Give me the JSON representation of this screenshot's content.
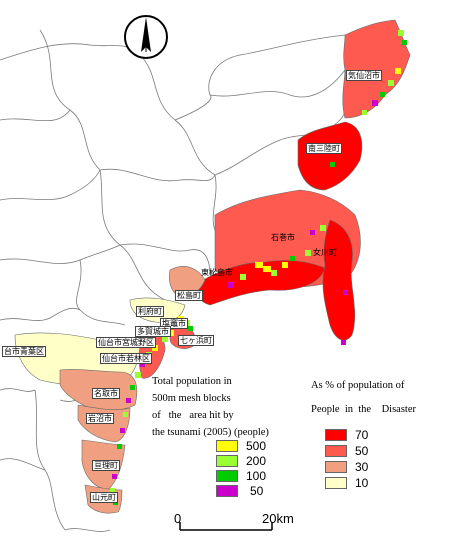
{
  "colors": {
    "pct_70": "#ff0000",
    "pct_50": "#ff5a50",
    "pct_30": "#f0a080",
    "pct_10": "#ffffc8",
    "pop_500": "#ffff00",
    "pop_200": "#99ff33",
    "pop_100": "#00cc00",
    "pop_50": "#cc00cc",
    "boundary": "#7a7a7a"
  },
  "compass": {
    "icon": "north-arrow-icon"
  },
  "places": [
    {
      "id": "kesennuma",
      "label": "気仙沼市",
      "bordered": true
    },
    {
      "id": "minamisanriku",
      "label": "南三陸町",
      "bordered": true
    },
    {
      "id": "ishinomaki",
      "label": "石巻市",
      "bordered": false
    },
    {
      "id": "onagawa",
      "label": "女川町",
      "bordered": false
    },
    {
      "id": "higashimatsushima",
      "label": "東松島市",
      "bordered": false
    },
    {
      "id": "matsushima",
      "label": "松島町",
      "bordered": true
    },
    {
      "id": "rifu",
      "label": "利府町",
      "bordered": true
    },
    {
      "id": "shiogama",
      "label": "塩竈市",
      "bordered": true
    },
    {
      "id": "tagajo",
      "label": "多賀城市",
      "bordered": true
    },
    {
      "id": "shichigahama",
      "label": "七ヶ浜町",
      "bordered": true
    },
    {
      "id": "miyagino",
      "label": "仙台市宮城野区",
      "bordered": true
    },
    {
      "id": "sendai_aoba",
      "label": "台市青葉区",
      "bordered": true
    },
    {
      "id": "wakabayashi",
      "label": "仙台市若林区",
      "bordered": true
    },
    {
      "id": "natori",
      "label": "名取市",
      "bordered": true
    },
    {
      "id": "iwanuma",
      "label": "岩沼市",
      "bordered": true
    },
    {
      "id": "watari",
      "label": "亘理町",
      "bordered": true
    },
    {
      "id": "yamamoto",
      "label": "山元町",
      "bordered": true
    }
  ],
  "legend_population": {
    "lines": [
      "Total population in",
      "500m mesh blocks",
      "of   the   area hit by",
      "the tsunami (2005) (people)"
    ],
    "items": [
      {
        "label": "500",
        "color": "#ffff00"
      },
      {
        "label": "200",
        "color": "#99ff33"
      },
      {
        "label": "100",
        "color": "#00cc00"
      },
      {
        "label": "50",
        "color": "#cc00cc"
      }
    ]
  },
  "legend_percent": {
    "lines": [
      "As % of population of",
      "People  in  the    Disaster"
    ],
    "items": [
      {
        "label": "70",
        "color": "#ff0000"
      },
      {
        "label": "50",
        "color": "#ff5a50"
      },
      {
        "label": "30",
        "color": "#f0a080"
      },
      {
        "label": "10",
        "color": "#ffffc8"
      }
    ]
  },
  "scale_bar": {
    "start": "0",
    "end": "20km"
  }
}
